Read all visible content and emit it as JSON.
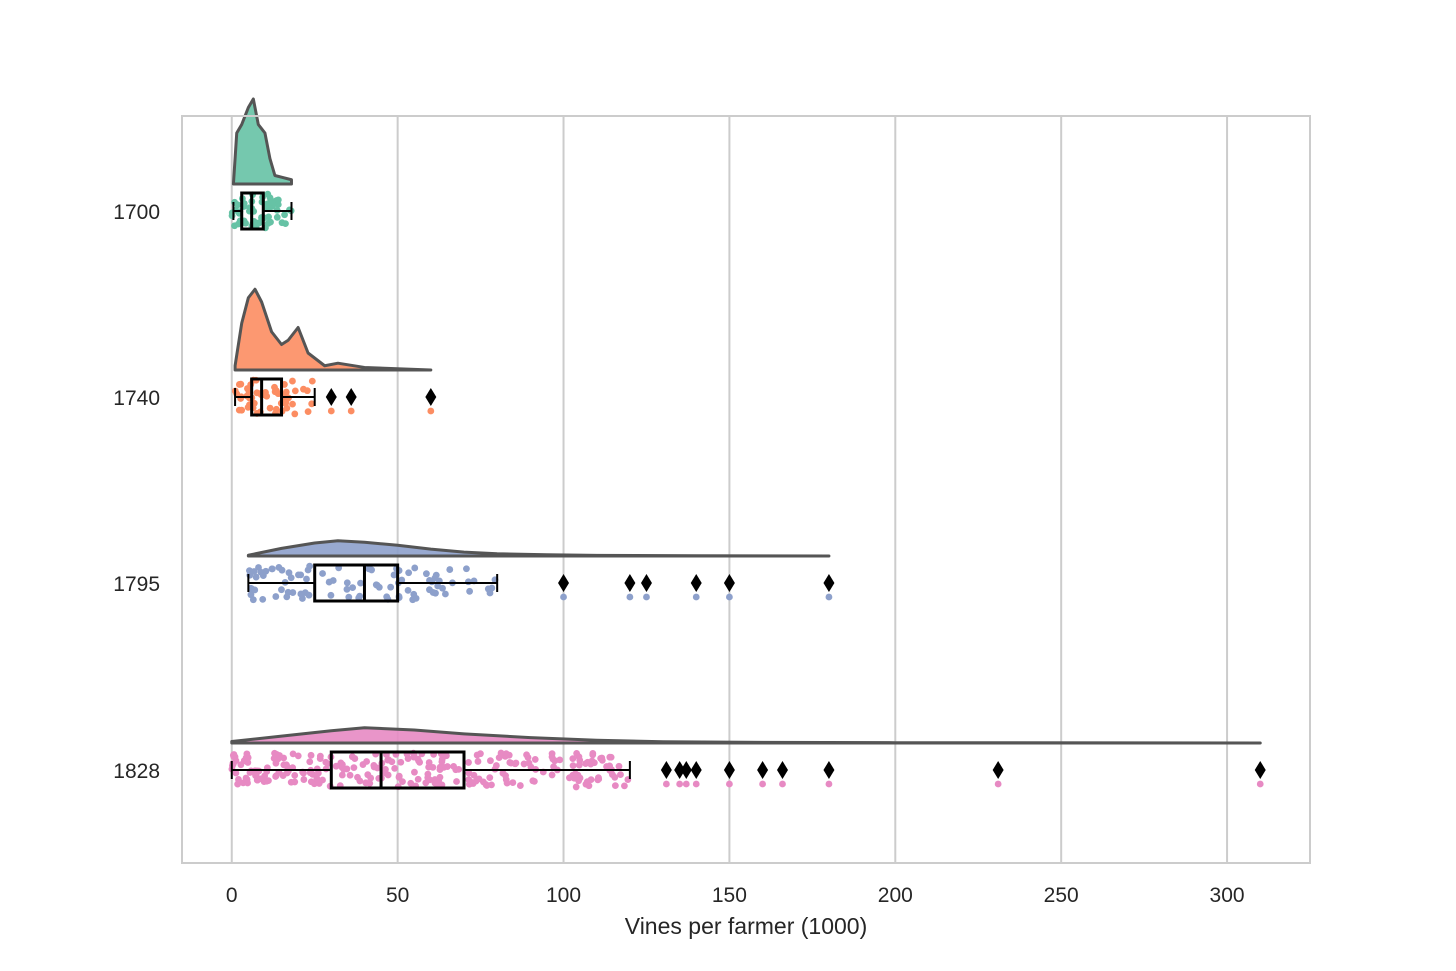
{
  "chart_data": {
    "type": "raincloud",
    "orientation": "horizontal",
    "xlabel": "Vines per farmer (1000)",
    "ylabel": "",
    "xlim": [
      -15,
      325
    ],
    "xticks": [
      "0",
      "50",
      "100",
      "150",
      "200",
      "250",
      "300"
    ],
    "grid": "vertical",
    "categories": [
      "1700",
      "1740",
      "1795",
      "1828"
    ],
    "series": [
      {
        "category": "1700",
        "color": "#66c2a5",
        "box": {
          "min": 0.5,
          "q1": 3,
          "median": 6,
          "q3": 9.5,
          "max": 18
        },
        "outliers": [],
        "density_peaks": [
          [
            0.5,
            0.0
          ],
          [
            1.5,
            0.6
          ],
          [
            3,
            0.7
          ],
          [
            5,
            0.9
          ],
          [
            6.5,
            1.0
          ],
          [
            8,
            0.7
          ],
          [
            10,
            0.6
          ],
          [
            11.5,
            0.3
          ],
          [
            13,
            0.1
          ],
          [
            15,
            0.08
          ],
          [
            18,
            0.05
          ]
        ],
        "density_range": [
          0.5,
          18
        ],
        "points_range": [
          0,
          18
        ]
      },
      {
        "category": "1740",
        "color": "#fc8d62",
        "box": {
          "min": 1,
          "q1": 6,
          "median": 9,
          "q3": 15,
          "max": 25
        },
        "outliers": [
          30,
          36,
          60
        ],
        "density_peaks": [
          [
            1,
            0.05
          ],
          [
            3,
            0.55
          ],
          [
            5,
            0.85
          ],
          [
            7,
            0.95
          ],
          [
            9,
            0.8
          ],
          [
            12,
            0.45
          ],
          [
            15,
            0.3
          ],
          [
            17,
            0.35
          ],
          [
            20,
            0.5
          ],
          [
            23,
            0.2
          ],
          [
            28,
            0.05
          ],
          [
            32,
            0.08
          ],
          [
            40,
            0.03
          ],
          [
            60,
            0.0
          ]
        ],
        "density_range": [
          1,
          60
        ],
        "points_range": [
          1,
          25
        ]
      },
      {
        "category": "1795",
        "color": "#8da0cb",
        "box": {
          "min": 5,
          "q1": 25,
          "median": 40,
          "q3": 50,
          "max": 80
        },
        "outliers": [
          100,
          120,
          125,
          140,
          150,
          180
        ],
        "density_peaks": [
          [
            5,
            0.05
          ],
          [
            15,
            0.5
          ],
          [
            25,
            0.85
          ],
          [
            32,
            1.0
          ],
          [
            40,
            0.9
          ],
          [
            50,
            0.7
          ],
          [
            60,
            0.45
          ],
          [
            70,
            0.25
          ],
          [
            80,
            0.15
          ],
          [
            95,
            0.08
          ],
          [
            110,
            0.04
          ],
          [
            140,
            0.02
          ],
          [
            180,
            0.0
          ]
        ],
        "density_range": [
          5,
          180
        ],
        "points_range": [
          5,
          80
        ]
      },
      {
        "category": "1828",
        "color": "#e78ac3",
        "box": {
          "min": 0,
          "q1": 30,
          "median": 45,
          "q3": 70,
          "max": 120
        },
        "outliers": [
          131,
          135,
          137,
          140,
          150,
          160,
          166,
          180,
          231,
          310
        ],
        "density_peaks": [
          [
            0,
            0.1
          ],
          [
            15,
            0.45
          ],
          [
            30,
            0.8
          ],
          [
            40,
            1.0
          ],
          [
            55,
            0.85
          ],
          [
            70,
            0.6
          ],
          [
            90,
            0.35
          ],
          [
            110,
            0.18
          ],
          [
            130,
            0.08
          ],
          [
            160,
            0.04
          ],
          [
            200,
            0.02
          ],
          [
            310,
            0.0
          ]
        ],
        "density_range": [
          0,
          310
        ],
        "points_range": [
          0,
          120
        ]
      }
    ]
  }
}
